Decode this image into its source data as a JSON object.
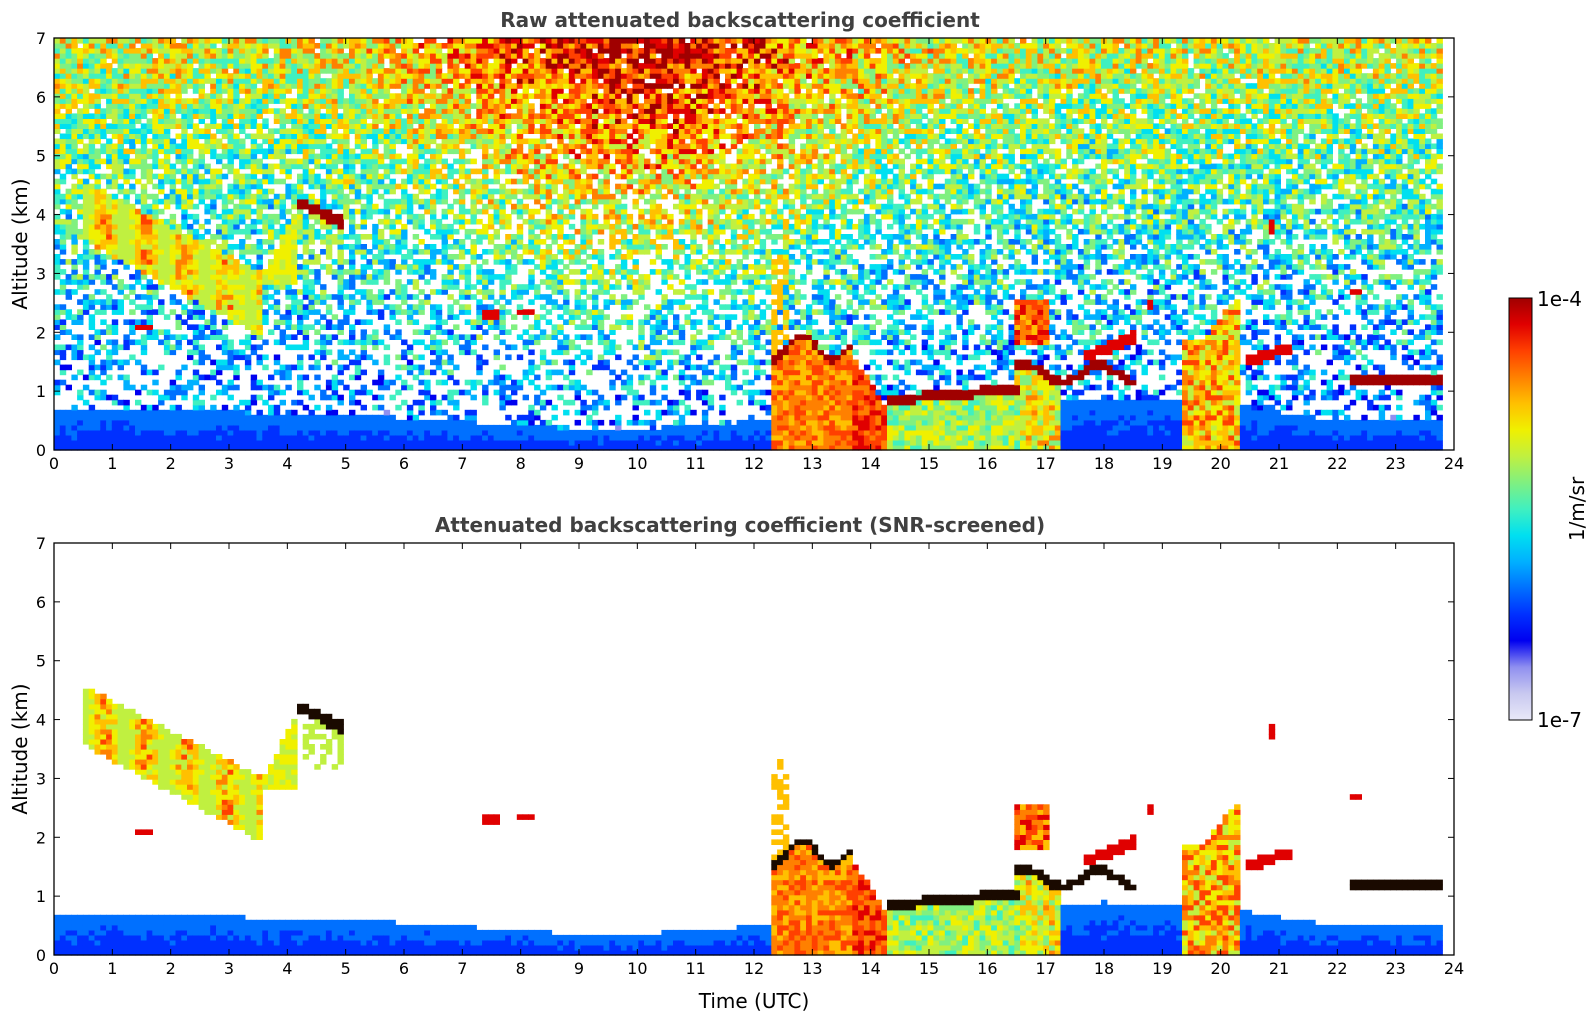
{
  "chart_data": [
    {
      "type": "heatmap",
      "title": "Raw attenuated backscattering coefficient",
      "xlabel": "",
      "ylabel": "Altitude (km)",
      "xlim": [
        0,
        24
      ],
      "ylim": [
        0,
        7
      ],
      "xticks": [
        "0",
        "1",
        "2",
        "3",
        "4",
        "5",
        "6",
        "7",
        "8",
        "9",
        "10",
        "11",
        "12",
        "13",
        "14",
        "15",
        "16",
        "17",
        "18",
        "19",
        "20",
        "21",
        "22",
        "23",
        "24"
      ],
      "yticks": [
        "0",
        "1",
        "2",
        "3",
        "4",
        "5",
        "6",
        "7"
      ],
      "screened": false,
      "features": {
        "boundary_layer_top_km": [
          [
            0,
            0.7
          ],
          [
            3,
            0.65
          ],
          [
            6,
            0.55
          ],
          [
            9,
            0.35
          ],
          [
            11,
            0.4
          ],
          [
            12,
            0.5
          ],
          [
            18,
            0.9
          ],
          [
            20,
            0.8
          ],
          [
            22,
            0.5
          ],
          [
            23.8,
            0.5
          ]
        ],
        "cloud_layers": [
          {
            "t": [
              0.5,
              3.6
            ],
            "z": [
              1.9,
              4.6
            ],
            "kind": "ice-slanted"
          },
          {
            "t": [
              4.3,
              5.0
            ],
            "z": [
              3.8,
              4.3
            ],
            "kind": "thin-layer"
          },
          {
            "t": [
              7.4,
              8.2
            ],
            "z": [
              2.3,
              2.4
            ],
            "kind": "small-cloud"
          },
          {
            "t": [
              12.3,
              13.7
            ],
            "z": [
              0,
              2.0
            ],
            "kind": "precip"
          },
          {
            "t": [
              14.5,
              16.8
            ],
            "z": [
              0.8,
              1.0
            ],
            "kind": "low-cloud"
          },
          {
            "t": [
              16.5,
              18.5
            ],
            "z": [
              1.2,
              2.4
            ],
            "kind": "mixed"
          },
          {
            "t": [
              19.3,
              20.3
            ],
            "z": [
              0,
              2.8
            ],
            "kind": "precip"
          },
          {
            "t": [
              22.2,
              23.8
            ],
            "z": [
              1.1,
              1.3
            ],
            "kind": "low-cloud"
          }
        ]
      }
    },
    {
      "type": "heatmap",
      "title": "Attenuated backscattering coefficient (SNR-screened)",
      "xlabel": "Time (UTC)",
      "ylabel": "Altitude (km)",
      "xlim": [
        0,
        24
      ],
      "ylim": [
        0,
        7
      ],
      "xticks": [
        "0",
        "1",
        "2",
        "3",
        "4",
        "5",
        "6",
        "7",
        "8",
        "9",
        "10",
        "11",
        "12",
        "13",
        "14",
        "15",
        "16",
        "17",
        "18",
        "19",
        "20",
        "21",
        "22",
        "23",
        "24"
      ],
      "yticks": [
        "0",
        "1",
        "2",
        "3",
        "4",
        "5",
        "6",
        "7"
      ],
      "screened": true
    }
  ],
  "colorbar": {
    "label": "1/m/sr",
    "max_label": "1e-4",
    "min_label": "1e-7",
    "colormap": [
      "#e8e8f8",
      "#c8c8f0",
      "#9090f0",
      "#0000f0",
      "#0030ff",
      "#0070ff",
      "#00b0ff",
      "#00e0f0",
      "#40f0c0",
      "#80f080",
      "#c0f040",
      "#f0f000",
      "#ffc000",
      "#ff8000",
      "#ff4000",
      "#e00000",
      "#a00000"
    ]
  }
}
